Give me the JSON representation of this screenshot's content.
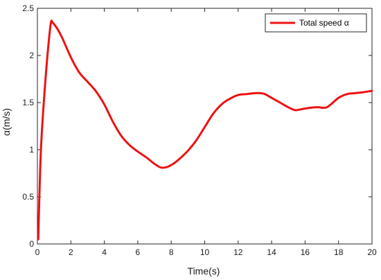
{
  "chart_data": {
    "type": "line",
    "xlabel": "Time(s)",
    "ylabel": "α(m/s)",
    "xlim": [
      0,
      20
    ],
    "ylim": [
      0,
      2.5
    ],
    "xticks": [
      "0",
      "2",
      "4",
      "6",
      "8",
      "10",
      "12",
      "14",
      "16",
      "18",
      "20"
    ],
    "yticks": [
      "0",
      "0.5",
      "1",
      "1.5",
      "2",
      "2.5"
    ],
    "grid": false,
    "legend_position": "top-right",
    "series": [
      {
        "name": "Total speed α",
        "color": "#ee1111",
        "x": [
          0.05,
          0.2,
          0.4,
          0.6,
          0.8,
          0.9,
          1.0,
          1.2,
          1.5,
          2.0,
          2.5,
          3.0,
          3.5,
          4.0,
          4.5,
          5.0,
          5.5,
          6.0,
          6.5,
          7.0,
          7.4,
          7.8,
          8.2,
          8.6,
          9.0,
          9.5,
          10.0,
          10.5,
          11.0,
          11.5,
          12.0,
          12.5,
          13.0,
          13.3,
          13.6,
          14.0,
          14.5,
          15.0,
          15.4,
          15.8,
          16.3,
          16.8,
          17.0,
          17.3,
          17.6,
          18.0,
          18.5,
          19.0,
          19.5,
          20.0
        ],
        "y": [
          0.05,
          0.95,
          1.55,
          2.0,
          2.34,
          2.35,
          2.33,
          2.28,
          2.18,
          1.98,
          1.82,
          1.72,
          1.62,
          1.48,
          1.3,
          1.15,
          1.05,
          0.98,
          0.92,
          0.85,
          0.81,
          0.82,
          0.86,
          0.92,
          0.99,
          1.1,
          1.24,
          1.38,
          1.48,
          1.54,
          1.58,
          1.59,
          1.6,
          1.6,
          1.59,
          1.55,
          1.5,
          1.45,
          1.42,
          1.43,
          1.445,
          1.45,
          1.445,
          1.45,
          1.49,
          1.55,
          1.59,
          1.6,
          1.61,
          1.625
        ]
      }
    ]
  }
}
